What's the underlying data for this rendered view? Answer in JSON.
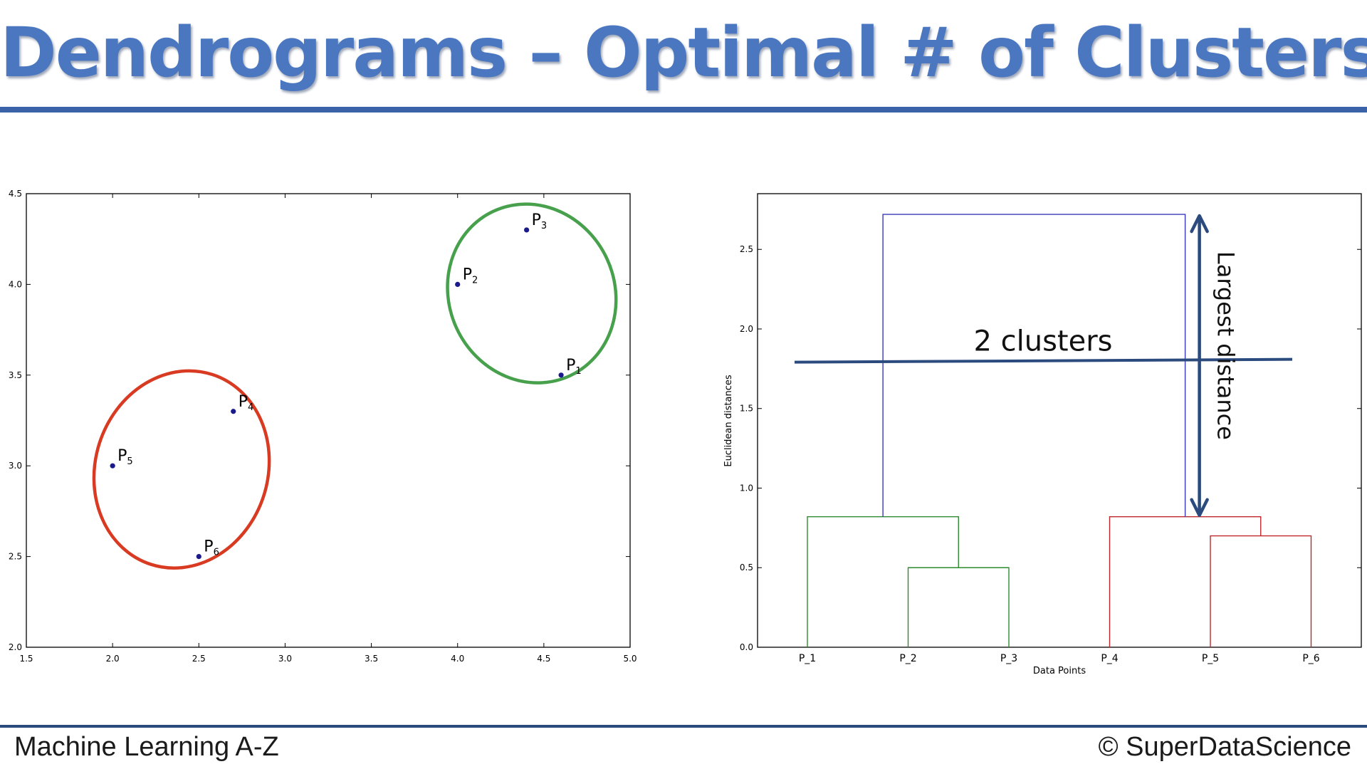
{
  "slide": {
    "title": "Dendrograms – Optimal # of Clusters",
    "footer_left": "Machine Learning A-Z",
    "footer_right": "© SuperDataScience"
  },
  "colors": {
    "title": "#4a77c0",
    "point": "#1a1a8c",
    "cluster_red": "#d83a22",
    "cluster_green": "#47a04b",
    "dendro_green": "#2e8b2e",
    "dendro_red": "#c0272d",
    "dendro_blue": "#3a3ab8",
    "annotation": "#2b4a7e"
  },
  "chart_data": [
    {
      "type": "scatter",
      "xlim": [
        1.5,
        5.0
      ],
      "ylim": [
        2.0,
        4.5
      ],
      "xticks": [
        "1.5",
        "2.0",
        "2.5",
        "3.0",
        "3.5",
        "4.0",
        "4.5",
        "5.0"
      ],
      "yticks": [
        "2.0",
        "2.5",
        "3.0",
        "3.5",
        "4.0",
        "4.5"
      ],
      "points": [
        {
          "label": "P",
          "sub": "1",
          "x": 4.6,
          "y": 3.5
        },
        {
          "label": "P",
          "sub": "2",
          "x": 4.0,
          "y": 4.0
        },
        {
          "label": "P",
          "sub": "3",
          "x": 4.4,
          "y": 4.3
        },
        {
          "label": "P",
          "sub": "4",
          "x": 2.7,
          "y": 3.3
        },
        {
          "label": "P",
          "sub": "5",
          "x": 2.0,
          "y": 3.0
        },
        {
          "label": "P",
          "sub": "6",
          "x": 2.5,
          "y": 2.5
        }
      ],
      "clusters": [
        {
          "cx": 2.4,
          "cy": 2.98,
          "rx": 0.5,
          "ry": 0.55,
          "color": "red"
        },
        {
          "cx": 4.43,
          "cy": 3.95,
          "rx": 0.48,
          "ry": 0.5,
          "color": "green"
        }
      ]
    },
    {
      "type": "dendrogram",
      "xlabel": "Data Points",
      "ylabel": "Euclidean distances",
      "ylim": [
        0,
        2.85
      ],
      "yticks": [
        "0.0",
        "0.5",
        "1.0",
        "1.5",
        "2.0",
        "2.5"
      ],
      "leaves": [
        "P_1",
        "P_2",
        "P_3",
        "P_4",
        "P_5",
        "P_6"
      ],
      "links": [
        {
          "left": 1.5,
          "right": 2.5,
          "height": 0.5,
          "left_base": 0,
          "right_base": 0,
          "color": "green"
        },
        {
          "left": 0.5,
          "right": 2.0,
          "height": 0.82,
          "left_base": 0,
          "right_base": 0.5,
          "color": "green"
        },
        {
          "left": 4.5,
          "right": 5.5,
          "height": 0.7,
          "left_base": 0,
          "right_base": 0,
          "color": "red"
        },
        {
          "left": 3.5,
          "right": 5.0,
          "height": 0.82,
          "left_base": 0,
          "right_base": 0.7,
          "color": "red"
        },
        {
          "left": 1.25,
          "right": 4.25,
          "height": 2.72,
          "left_base": 0.82,
          "right_base": 0.82,
          "color": "blue"
        }
      ],
      "cut_line": {
        "height": 1.8,
        "label": "2 clusters"
      },
      "distance_arrow": {
        "from": 0.82,
        "to": 2.72,
        "label": "Largest distance"
      }
    }
  ]
}
